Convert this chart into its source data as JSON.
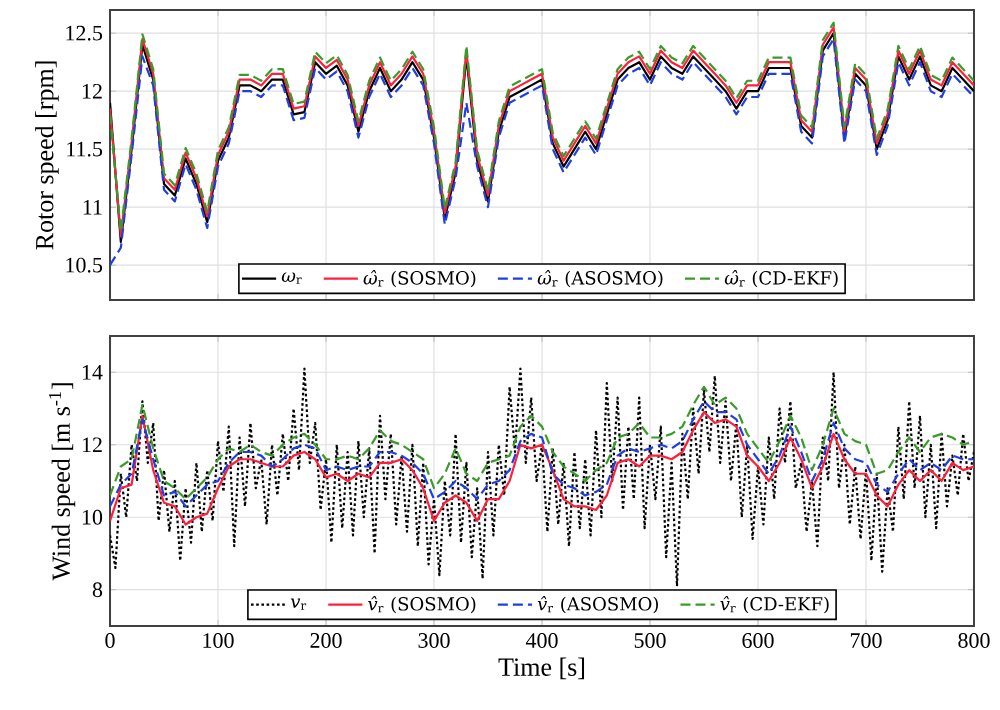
{
  "chart_data": [
    {
      "type": "line",
      "ylabel": "Rotor speed [rpm]",
      "xlim": [
        0,
        800
      ],
      "ylim": [
        10.2,
        12.7
      ],
      "xticks": [
        0,
        100,
        200,
        300,
        400,
        500,
        600,
        700,
        800
      ],
      "yticks": [
        10.5,
        11,
        11.5,
        12,
        12.5
      ],
      "tick_labels": "y",
      "grid": true,
      "legend": "bottom",
      "x": [
        0,
        10,
        20,
        30,
        40,
        50,
        60,
        70,
        80,
        90,
        100,
        110,
        120,
        130,
        140,
        150,
        160,
        170,
        180,
        190,
        200,
        210,
        220,
        230,
        240,
        250,
        260,
        270,
        280,
        290,
        300,
        310,
        320,
        330,
        340,
        350,
        360,
        370,
        380,
        390,
        400,
        410,
        420,
        430,
        440,
        450,
        460,
        470,
        480,
        490,
        500,
        510,
        520,
        530,
        540,
        550,
        560,
        570,
        580,
        590,
        600,
        610,
        620,
        630,
        640,
        650,
        660,
        670,
        680,
        690,
        700,
        710,
        720,
        730,
        740,
        750,
        760,
        770,
        780,
        790,
        800
      ],
      "series": [
        {
          "name": "*ω*$_{r}$",
          "color": "#000000",
          "line_style": "solid",
          "values": [
            11.9,
            10.7,
            11.5,
            12.4,
            12.1,
            11.2,
            11.1,
            11.42,
            11.2,
            10.87,
            11.4,
            11.6,
            12.05,
            12.05,
            12.0,
            12.1,
            12.1,
            11.8,
            11.82,
            12.25,
            12.15,
            12.22,
            12.05,
            11.65,
            12.0,
            12.2,
            12.0,
            12.1,
            12.25,
            12.1,
            11.6,
            10.9,
            11.3,
            12.3,
            11.4,
            11.05,
            11.65,
            11.95,
            12.0,
            12.05,
            12.1,
            11.55,
            11.35,
            11.5,
            11.65,
            11.5,
            11.8,
            12.1,
            12.2,
            12.25,
            12.1,
            12.3,
            12.2,
            12.15,
            12.3,
            12.2,
            12.1,
            12.0,
            11.85,
            12.0,
            12.0,
            12.2,
            12.2,
            12.2,
            11.7,
            11.6,
            12.35,
            12.5,
            11.6,
            12.15,
            12.05,
            11.5,
            11.75,
            12.3,
            12.1,
            12.3,
            12.05,
            12.0,
            12.2,
            12.1,
            12.0
          ]
        },
        {
          "name": "*ω̂*$_{r}$ (SOSMO)",
          "color": "#ff1f3a",
          "line_style": "solid",
          "values": [
            11.85,
            10.75,
            11.55,
            12.45,
            12.15,
            11.25,
            11.15,
            11.47,
            11.25,
            10.92,
            11.45,
            11.65,
            12.1,
            12.1,
            12.05,
            12.15,
            12.15,
            11.85,
            11.87,
            12.3,
            12.2,
            12.27,
            12.1,
            11.7,
            12.05,
            12.25,
            12.05,
            12.15,
            12.3,
            12.15,
            11.65,
            10.95,
            11.35,
            12.35,
            11.45,
            11.1,
            11.7,
            12.0,
            12.05,
            12.1,
            12.15,
            11.6,
            11.4,
            11.55,
            11.7,
            11.55,
            11.85,
            12.15,
            12.25,
            12.3,
            12.15,
            12.35,
            12.25,
            12.2,
            12.35,
            12.25,
            12.15,
            12.05,
            11.9,
            12.05,
            12.05,
            12.25,
            12.25,
            12.25,
            11.75,
            11.65,
            12.4,
            12.55,
            11.65,
            12.2,
            12.1,
            11.55,
            11.8,
            12.35,
            12.15,
            12.35,
            12.1,
            12.05,
            12.25,
            12.15,
            12.05
          ]
        },
        {
          "name": "*ω̂*$_{r}$ (ASOSMO)",
          "color": "#1f3fdf",
          "line_style": "dashed",
          "values": [
            10.5,
            10.65,
            11.45,
            12.3,
            12.05,
            11.15,
            11.05,
            11.37,
            11.15,
            10.82,
            11.35,
            11.55,
            12.0,
            12.0,
            11.95,
            12.05,
            12.05,
            11.75,
            11.77,
            12.2,
            12.1,
            12.17,
            12.0,
            11.6,
            11.95,
            12.15,
            11.95,
            12.05,
            12.2,
            12.05,
            11.55,
            10.85,
            11.25,
            11.9,
            11.35,
            11.0,
            11.6,
            11.9,
            11.95,
            12.0,
            12.05,
            11.5,
            11.3,
            11.45,
            11.6,
            11.45,
            11.75,
            12.05,
            12.15,
            12.2,
            12.05,
            12.25,
            12.15,
            12.1,
            12.25,
            12.15,
            12.05,
            11.95,
            11.8,
            11.95,
            11.95,
            12.15,
            12.15,
            12.15,
            11.65,
            11.55,
            12.3,
            12.45,
            11.55,
            12.1,
            12.0,
            11.45,
            11.7,
            12.25,
            12.05,
            12.25,
            12.0,
            11.95,
            12.15,
            12.05,
            11.95
          ]
        },
        {
          "name": "*ω̂*$_{r}$ (CD-EKF)",
          "color": "#3a9a2a",
          "line_style": "dashed",
          "values": [
            11.8,
            10.79,
            11.59,
            12.49,
            12.19,
            11.29,
            11.19,
            11.51,
            11.29,
            10.96,
            11.49,
            11.69,
            12.14,
            12.14,
            12.09,
            12.19,
            12.19,
            11.89,
            11.91,
            12.34,
            12.24,
            12.31,
            12.14,
            11.74,
            12.09,
            12.29,
            12.09,
            12.19,
            12.34,
            12.19,
            11.69,
            10.99,
            11.39,
            12.39,
            11.49,
            11.14,
            11.74,
            12.04,
            12.09,
            12.14,
            12.19,
            11.64,
            11.44,
            11.59,
            11.74,
            11.59,
            11.89,
            12.19,
            12.29,
            12.34,
            12.19,
            12.39,
            12.29,
            12.24,
            12.39,
            12.29,
            12.19,
            12.09,
            11.94,
            12.09,
            12.09,
            12.29,
            12.29,
            12.29,
            11.79,
            11.69,
            12.44,
            12.59,
            11.69,
            12.24,
            12.14,
            11.59,
            11.84,
            12.39,
            12.19,
            12.39,
            12.14,
            12.09,
            12.29,
            12.19,
            12.09
          ]
        }
      ]
    },
    {
      "type": "line",
      "xlabel": "Time [s]",
      "ylabel": "Wind speed [m s$^{-1}$]",
      "xlim": [
        0,
        800
      ],
      "ylim": [
        7,
        15
      ],
      "xticks": [
        0,
        100,
        200,
        300,
        400,
        500,
        600,
        700,
        800
      ],
      "yticks": [
        8,
        10,
        12,
        14
      ],
      "grid": true,
      "legend": "bottom",
      "x": [
        0,
        10,
        20,
        30,
        40,
        50,
        60,
        70,
        80,
        90,
        100,
        110,
        120,
        130,
        140,
        150,
        160,
        170,
        180,
        190,
        200,
        210,
        220,
        230,
        240,
        250,
        260,
        270,
        280,
        290,
        300,
        310,
        320,
        330,
        340,
        350,
        360,
        370,
        380,
        390,
        400,
        410,
        420,
        430,
        440,
        450,
        460,
        470,
        480,
        490,
        500,
        510,
        520,
        530,
        540,
        550,
        560,
        570,
        580,
        590,
        600,
        610,
        620,
        630,
        640,
        650,
        660,
        670,
        680,
        690,
        700,
        710,
        720,
        730,
        740,
        750,
        760,
        770,
        780,
        790,
        800
      ],
      "series": [
        {
          "name": "*v*$_{r}$",
          "color": "#000000",
          "line_style": "dotted",
          "x": [
            0,
            5,
            10,
            15,
            20,
            25,
            30,
            35,
            40,
            45,
            50,
            55,
            60,
            65,
            70,
            75,
            80,
            85,
            90,
            95,
            100,
            105,
            110,
            115,
            120,
            125,
            130,
            135,
            140,
            145,
            150,
            155,
            160,
            165,
            170,
            175,
            180,
            185,
            190,
            195,
            200,
            205,
            210,
            215,
            220,
            225,
            230,
            235,
            240,
            245,
            250,
            255,
            260,
            265,
            270,
            275,
            280,
            285,
            290,
            295,
            300,
            305,
            310,
            315,
            320,
            325,
            330,
            335,
            340,
            345,
            350,
            355,
            360,
            365,
            370,
            375,
            380,
            385,
            390,
            395,
            400,
            405,
            410,
            415,
            420,
            425,
            430,
            435,
            440,
            445,
            450,
            455,
            460,
            465,
            470,
            475,
            480,
            485,
            490,
            495,
            500,
            505,
            510,
            515,
            520,
            525,
            530,
            535,
            540,
            545,
            550,
            555,
            560,
            565,
            570,
            575,
            580,
            585,
            590,
            595,
            600,
            605,
            610,
            615,
            620,
            625,
            630,
            635,
            640,
            645,
            650,
            655,
            660,
            665,
            670,
            675,
            680,
            685,
            690,
            695,
            700,
            705,
            710,
            715,
            720,
            725,
            730,
            735,
            740,
            745,
            750,
            755,
            760,
            765,
            770,
            775,
            780,
            785,
            790,
            795,
            800
          ],
          "values": [
            9.5,
            8.6,
            11.2,
            10.0,
            12.0,
            11.0,
            13.2,
            11.5,
            12.6,
            9.9,
            11.3,
            9.6,
            11.0,
            8.8,
            10.8,
            9.3,
            11.5,
            9.6,
            11.3,
            9.9,
            12.1,
            10.7,
            12.5,
            9.2,
            12.2,
            10.3,
            12.6,
            10.8,
            11.6,
            9.8,
            12.0,
            10.6,
            12.3,
            11.0,
            13.0,
            11.3,
            14.1,
            11.5,
            12.6,
            10.2,
            11.6,
            9.3,
            12.0,
            9.7,
            11.8,
            9.5,
            12.1,
            10.0,
            11.9,
            9.0,
            12.8,
            10.5,
            12.3,
            9.8,
            11.7,
            9.6,
            12.0,
            9.2,
            11.5,
            8.7,
            10.5,
            8.4,
            11.0,
            9.5,
            12.3,
            9.3,
            11.5,
            8.9,
            10.8,
            8.3,
            11.8,
            9.5,
            12.0,
            10.6,
            13.6,
            11.8,
            14.1,
            11.5,
            13.3,
            11.0,
            12.0,
            9.6,
            11.9,
            9.8,
            11.5,
            9.2,
            11.8,
            9.7,
            11.6,
            9.5,
            12.4,
            10.0,
            13.7,
            11.0,
            13.3,
            10.2,
            12.5,
            10.5,
            13.3,
            9.7,
            12.0,
            10.5,
            12.5,
            8.9,
            11.5,
            8.1,
            12.3,
            10.5,
            13.0,
            11.2,
            13.5,
            11.8,
            13.9,
            11.5,
            13.2,
            11.0,
            12.6,
            10.0,
            12.0,
            9.4,
            11.4,
            9.8,
            12.2,
            10.5,
            13.0,
            11.5,
            13.2,
            10.8,
            11.5,
            9.6,
            11.0,
            9.2,
            12.2,
            11.0,
            14.0,
            10.8,
            12.0,
            9.8,
            11.4,
            9.4,
            11.3,
            8.8,
            11.2,
            8.5,
            10.8,
            9.6,
            12.5,
            10.5,
            13.2,
            10.8,
            12.8,
            10.0,
            12.0,
            9.7,
            12.3,
            10.3,
            11.7,
            10.6,
            12.3,
            11.0,
            11.8
          ]
        },
        {
          "name": "*v̂*$_{r}$ (SOSMO)",
          "color": "#ff1f3a",
          "line_style": "solid",
          "values": [
            9.9,
            10.8,
            10.9,
            12.8,
            11.3,
            10.4,
            10.3,
            9.8,
            10.0,
            10.1,
            10.8,
            11.4,
            11.6,
            11.6,
            11.5,
            11.4,
            11.4,
            11.7,
            11.8,
            11.6,
            11.1,
            11.2,
            11.0,
            11.2,
            11.1,
            11.5,
            11.5,
            11.6,
            11.3,
            10.8,
            9.9,
            10.4,
            10.6,
            10.4,
            9.9,
            10.5,
            10.5,
            11.0,
            12.0,
            11.9,
            12.0,
            11.3,
            10.5,
            10.3,
            10.3,
            10.2,
            10.6,
            11.5,
            11.6,
            11.4,
            11.7,
            11.7,
            11.6,
            11.8,
            12.4,
            12.9,
            12.6,
            12.7,
            12.5,
            11.7,
            11.4,
            11.0,
            11.5,
            12.2,
            11.6,
            10.8,
            11.4,
            12.3,
            11.6,
            11.2,
            11.2,
            10.6,
            10.3,
            10.9,
            11.3,
            11.0,
            11.3,
            11.0,
            11.5,
            11.3,
            11.4
          ]
        },
        {
          "name": "*v̂*$_{r}$ (ASOSMO)",
          "color": "#1f3fdf",
          "line_style": "dashed",
          "values": [
            10.3,
            10.9,
            11.2,
            12.7,
            11.6,
            10.6,
            10.7,
            10.3,
            10.6,
            10.9,
            11.0,
            11.5,
            11.8,
            11.8,
            11.7,
            11.4,
            11.6,
            11.9,
            12.0,
            11.9,
            11.3,
            11.4,
            11.3,
            11.4,
            11.4,
            11.8,
            11.8,
            11.7,
            11.5,
            11.2,
            10.5,
            10.7,
            11.0,
            10.8,
            10.5,
            10.9,
            11.0,
            11.3,
            12.1,
            12.3,
            12.2,
            11.2,
            10.9,
            10.8,
            10.6,
            10.7,
            10.9,
            11.7,
            11.9,
            11.8,
            11.9,
            12.0,
            11.9,
            12.1,
            12.7,
            13.2,
            12.9,
            12.9,
            12.7,
            12.0,
            11.6,
            11.2,
            11.7,
            12.5,
            11.8,
            11.0,
            11.6,
            12.6,
            11.9,
            11.6,
            11.5,
            10.9,
            10.7,
            11.2,
            11.6,
            11.3,
            11.5,
            11.3,
            11.7,
            11.6,
            11.6
          ]
        },
        {
          "name": "*v̂*$_{r}$ (CD-EKF)",
          "color": "#3a9a2a",
          "line_style": "dashed",
          "values": [
            10.6,
            11.4,
            11.6,
            13.1,
            11.9,
            11.0,
            10.8,
            10.5,
            10.8,
            11.1,
            11.6,
            11.9,
            11.8,
            12.0,
            11.8,
            11.7,
            12.0,
            12.2,
            12.3,
            12.0,
            11.6,
            11.6,
            11.7,
            11.6,
            11.9,
            12.4,
            12.1,
            12.0,
            11.8,
            11.6,
            10.8,
            11.2,
            11.9,
            11.2,
            11.0,
            11.5,
            11.6,
            11.7,
            12.5,
            12.8,
            12.5,
            11.8,
            11.4,
            11.2,
            11.0,
            11.3,
            11.5,
            12.2,
            12.3,
            12.6,
            12.2,
            12.2,
            12.3,
            12.5,
            13.1,
            13.6,
            13.1,
            13.3,
            13.0,
            12.3,
            11.9,
            11.5,
            12.1,
            12.8,
            12.2,
            11.3,
            12.0,
            13.0,
            12.3,
            12.1,
            12.0,
            11.2,
            11.3,
            11.8,
            12.2,
            11.8,
            12.2,
            12.3,
            12.2,
            12.0,
            12.1
          ]
        }
      ]
    }
  ]
}
